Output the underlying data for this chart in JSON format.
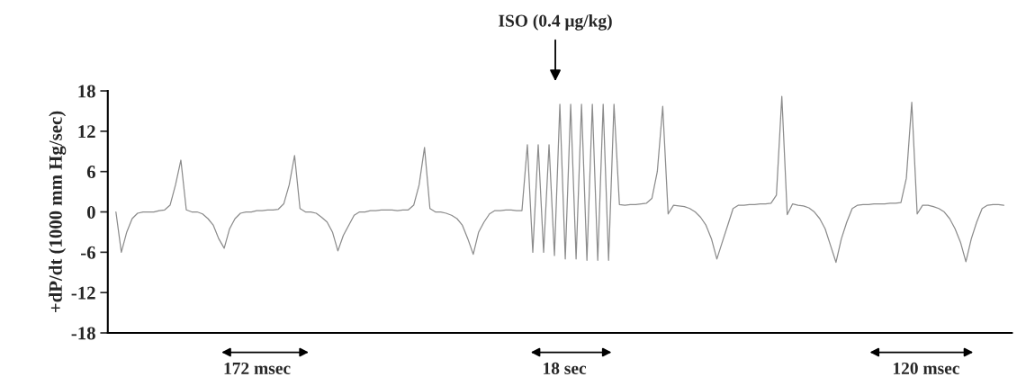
{
  "chart_data": {
    "type": "line",
    "ylabel": "+dP/dt (1000 mm Hg/sec)",
    "categories": [
      null,
      null,
      null,
      null,
      null,
      null,
      null,
      null,
      null,
      null,
      null,
      null,
      null,
      null,
      null,
      null,
      null,
      null,
      null,
      null,
      null,
      null,
      null,
      null,
      null,
      null,
      null,
      null,
      null,
      null,
      null,
      null,
      null,
      null,
      null,
      null,
      null,
      null,
      null,
      null,
      null,
      null,
      null,
      null,
      null,
      null,
      null,
      null,
      null,
      null,
      null,
      null,
      null,
      null,
      null,
      null,
      null,
      null,
      null,
      null,
      null,
      null,
      null,
      null,
      null,
      null,
      null,
      null,
      null,
      null,
      null,
      null,
      null,
      null,
      null,
      null,
      null,
      null,
      null,
      null,
      null,
      null,
      null,
      null,
      null,
      null,
      null,
      null,
      null,
      null,
      null,
      null,
      null,
      null,
      null,
      null,
      null,
      null,
      null,
      null,
      null,
      null,
      null,
      null,
      null,
      null,
      null,
      null,
      null,
      null,
      null,
      null,
      null,
      null,
      null,
      null,
      null,
      null,
      null,
      null,
      null,
      null,
      null,
      null,
      null,
      null,
      null,
      null,
      null,
      null,
      null,
      null,
      null,
      null,
      null,
      null,
      null,
      null,
      null,
      null,
      null,
      null,
      null,
      null,
      null,
      null,
      null,
      null,
      null,
      null,
      null,
      null,
      null,
      null,
      null,
      null,
      null,
      null,
      null,
      null,
      null,
      null,
      null,
      null,
      null
    ],
    "series": [
      {
        "color": "#8c8c8c",
        "values": [
          0,
          -6.0,
          -3,
          -1,
          -0.2,
          0,
          0,
          0,
          0.2,
          0.3,
          1,
          4,
          7.7,
          0.3,
          0,
          0,
          -0.3,
          -1,
          -2,
          -4,
          -5.4,
          -2.5,
          -1,
          -0.2,
          0,
          0,
          0.2,
          0.2,
          0.3,
          0.3,
          0.4,
          1.2,
          4,
          8.4,
          0.5,
          0,
          0,
          -0.2,
          -0.8,
          -1.5,
          -3,
          -5.8,
          -3.5,
          -2,
          -0.5,
          0,
          0,
          0.2,
          0.2,
          0.3,
          0.3,
          0.3,
          0.2,
          0.3,
          0.3,
          1,
          4,
          9.6,
          0.5,
          0,
          0,
          -0.2,
          -0.5,
          -1,
          -2,
          -4,
          -6.3,
          -3,
          -1.5,
          -0.3,
          0.2,
          0.2,
          0.3,
          0.3,
          0.2,
          0.2,
          10,
          -6,
          10,
          -6,
          10,
          -6.5,
          16,
          -7,
          16,
          -7,
          16,
          -7.2,
          16,
          -7.2,
          16,
          -7.2,
          16,
          1.1,
          1.0,
          1.1,
          1.1,
          1.2,
          1.3,
          2,
          6,
          15.7,
          -0.3,
          1,
          0.9,
          0.8,
          0.5,
          0,
          -0.8,
          -2,
          -4,
          -7,
          -4.5,
          -2,
          0.5,
          1,
          1,
          1.1,
          1.1,
          1.2,
          1.2,
          1.3,
          2.5,
          17.2,
          -0.4,
          1.2,
          1,
          0.9,
          0.6,
          0,
          -1,
          -2.5,
          -5,
          -7.5,
          -4,
          -1.5,
          0.5,
          1,
          1.1,
          1.1,
          1.2,
          1.2,
          1.2,
          1.3,
          1.3,
          1.4,
          5,
          16.3,
          -0.3,
          1,
          1,
          0.8,
          0.5,
          0,
          -1,
          -2.5,
          -4.5,
          -7.4,
          -4,
          -1.5,
          0.5,
          1,
          1.1,
          1.1,
          1.0
        ]
      }
    ],
    "ylim": [
      -18,
      18
    ],
    "yticks": [
      -18,
      -12,
      -6,
      0,
      6,
      12,
      18
    ],
    "annotations": [
      "ISO (0.4 μg/kg)",
      "172 msec",
      "18 sec",
      "120 msec"
    ],
    "tick_labels": "y",
    "grid": false,
    "legend": false
  }
}
